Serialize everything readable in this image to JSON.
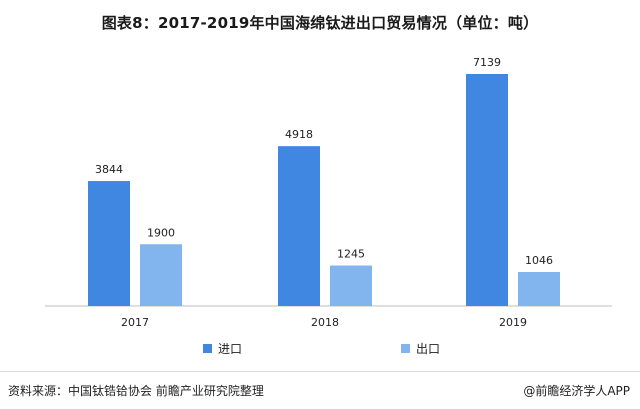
{
  "title": "图表8：2017-2019年中国海绵钛进出口贸易情况（单位：吨）",
  "source": "资料来源：中国钛锆铪协会 前瞻产业研究院整理",
  "credit": "@前瞻经济学人APP",
  "colors": {
    "import": "#3f87e0",
    "export": "#82b4ee",
    "axis": "#bfbfbf"
  },
  "chart_data": {
    "type": "bar",
    "title": "图表8：2017-2019年中国海绵钛进出口贸易情况（单位：吨）",
    "categories": [
      "2017",
      "2018",
      "2019"
    ],
    "series": [
      {
        "name": "进口",
        "values": [
          3844,
          4918,
          7139
        ]
      },
      {
        "name": "出口",
        "values": [
          1900,
          1245,
          1046
        ]
      }
    ],
    "xlabel": "",
    "ylabel": "",
    "ylim": [
      0,
      8000
    ],
    "grid": false,
    "legend_position": "bottom"
  }
}
